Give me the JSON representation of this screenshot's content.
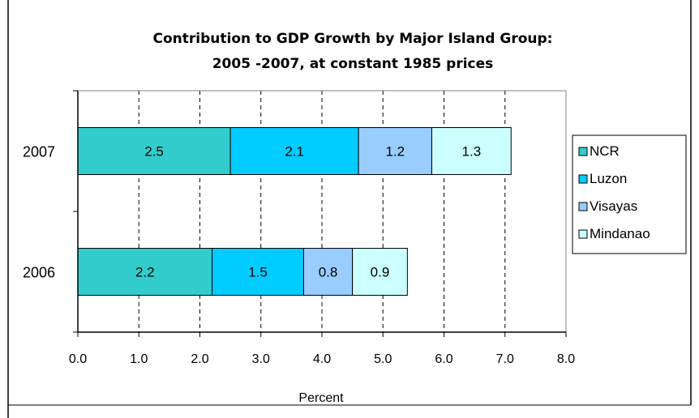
{
  "chart_data": {
    "type": "bar",
    "orientation": "horizontal",
    "stacked": true,
    "title_lines": [
      "Contribution to GDP Growth by Major Island Group:",
      "2005 -2007, at constant 1985 prices"
    ],
    "xlabel": "Percent",
    "xlim": [
      0,
      8
    ],
    "xticks": [
      "0.0",
      "1.0",
      "2.0",
      "3.0",
      "4.0",
      "5.0",
      "6.0",
      "7.0",
      "8.0"
    ],
    "grid": "vertical dashed",
    "legend_position": "right",
    "categories": [
      "2007",
      "2006"
    ],
    "series": [
      {
        "name": "NCR",
        "color": "#33CCCC",
        "values": [
          2.5,
          2.2
        ],
        "labels": [
          "2.5",
          "2.2"
        ]
      },
      {
        "name": "Luzon",
        "color": "#00CCFF",
        "values": [
          2.1,
          1.5
        ],
        "labels": [
          "2.1",
          "1.5"
        ]
      },
      {
        "name": "Visayas",
        "color": "#99CCFF",
        "values": [
          1.2,
          0.8
        ],
        "labels": [
          "1.2",
          "0.8"
        ]
      },
      {
        "name": "Mindanao",
        "color": "#CCFFFF",
        "values": [
          1.3,
          0.9
        ],
        "labels": [
          "1.3",
          "0.9"
        ]
      }
    ]
  }
}
